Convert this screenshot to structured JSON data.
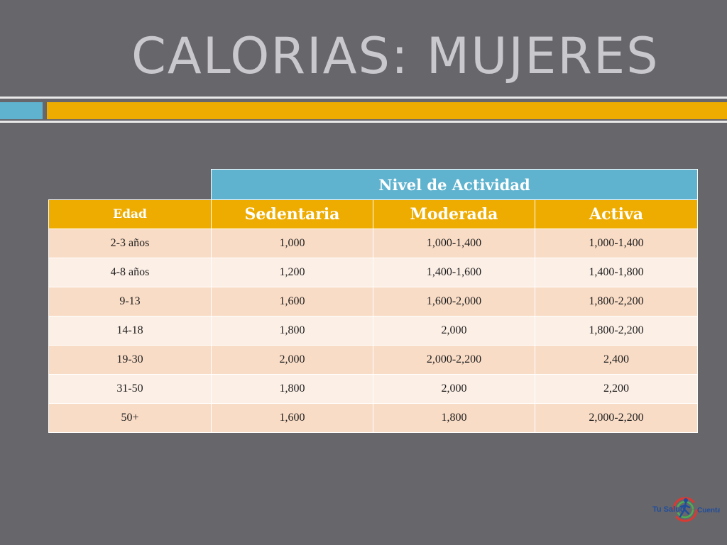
{
  "slide": {
    "title": "CALORIAS: MUJERES"
  },
  "table": {
    "group_header": "Nivel de Actividad",
    "columns": [
      "Edad",
      "Sedentaria",
      "Moderada",
      "Activa"
    ],
    "rows": [
      [
        "2-3 años",
        "1,000",
        "1,000-1,400",
        "1,000-1,400"
      ],
      [
        "4-8 años",
        "1,200",
        "1,400-1,600",
        "1,400-1,800"
      ],
      [
        "9-13",
        "1,600",
        "1,600-2,000",
        "1,800-2,200"
      ],
      [
        "14-18",
        "1,800",
        "2,000",
        "1,800-2,200"
      ],
      [
        "19-30",
        "2,000",
        "2,000-2,200",
        "2,400"
      ],
      [
        "31-50",
        "1,800",
        "2,000",
        "2,200"
      ],
      [
        "50+",
        "1,600",
        "1,800",
        "2,000-2,200"
      ]
    ]
  },
  "logo": {
    "text_left": "Tu Salud",
    "text_right": "Cuenta",
    "icon": "runner-logo-icon"
  },
  "colors": {
    "background": "#67666b",
    "accent_blue": "#5fb3cf",
    "accent_orange": "#efac00",
    "row_dark": "#f9dcc6",
    "row_light": "#fcefe6"
  }
}
